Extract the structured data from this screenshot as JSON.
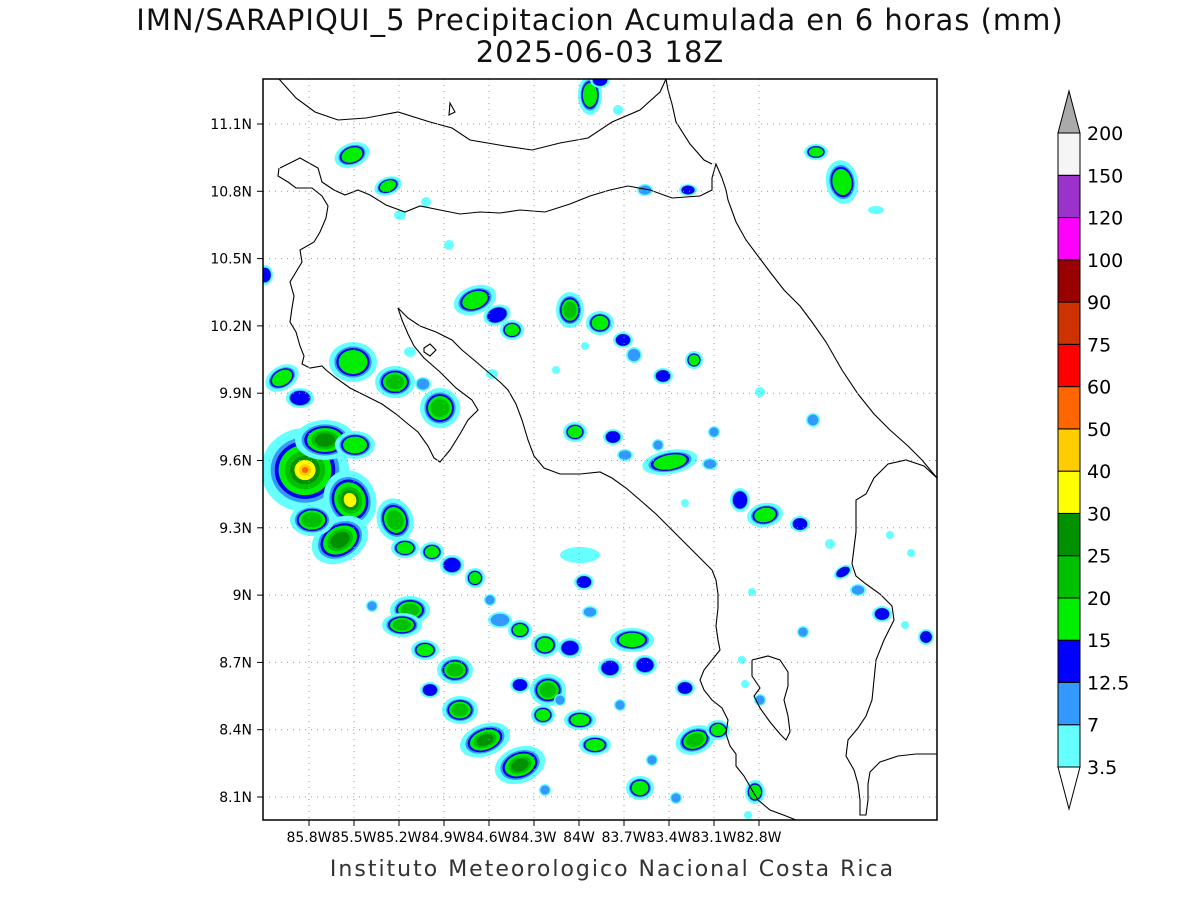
{
  "title": {
    "line1": "IMN/SARAPIQUI_5 Precipitacion Acumulada en 6 horas (mm)",
    "line2": "2025-06-03 18Z"
  },
  "credit": "Instituto Meteorologico Nacional Costa Rica",
  "map": {
    "lat_ticks": [
      "11.1N",
      "10.8N",
      "10.5N",
      "10.2N",
      "9.9N",
      "9.6N",
      "9.3N",
      "9N",
      "8.7N",
      "8.4N",
      "8.1N"
    ],
    "lon_ticks": [
      "85.8W",
      "85.5W",
      "85.2W",
      "84.9W",
      "84.6W",
      "84.3W",
      "84W",
      "83.7W",
      "83.4W",
      "83.1W",
      "82.8W"
    ],
    "lat_values": [
      11.1,
      10.8,
      10.5,
      10.2,
      9.9,
      9.6,
      9.3,
      9.0,
      8.7,
      8.4,
      8.1
    ],
    "lon_values": [
      -85.8,
      -85.5,
      -85.2,
      -84.9,
      -84.6,
      -84.3,
      -84.0,
      -83.7,
      -83.4,
      -83.1,
      -82.8
    ],
    "gridlines": "dotted"
  },
  "colorbar": {
    "units": "mm",
    "labels": [
      "3.5",
      "7",
      "12.5",
      "15",
      "20",
      "25",
      "30",
      "40",
      "50",
      "60",
      "75",
      "90",
      "100",
      "120",
      "150",
      "200"
    ],
    "colors": [
      "#66ffff",
      "#3399ff",
      "#0000ff",
      "#00ee00",
      "#00c000",
      "#009000",
      "#ffff00",
      "#ffcc00",
      "#ff6600",
      "#ff0000",
      "#cc3300",
      "#990000",
      "#ff00ff",
      "#9933cc",
      "#f5f5f5",
      "#aaaaaa"
    ]
  },
  "precip_palette": {
    "c35": "#66ffff",
    "c7": "#3399ff",
    "c125": "#0000ff",
    "c15": "#00ee00",
    "c20": "#00c000",
    "c25": "#009000",
    "c30": "#ffff00",
    "c40": "#ffcc00",
    "c50": "#ff6600"
  }
}
